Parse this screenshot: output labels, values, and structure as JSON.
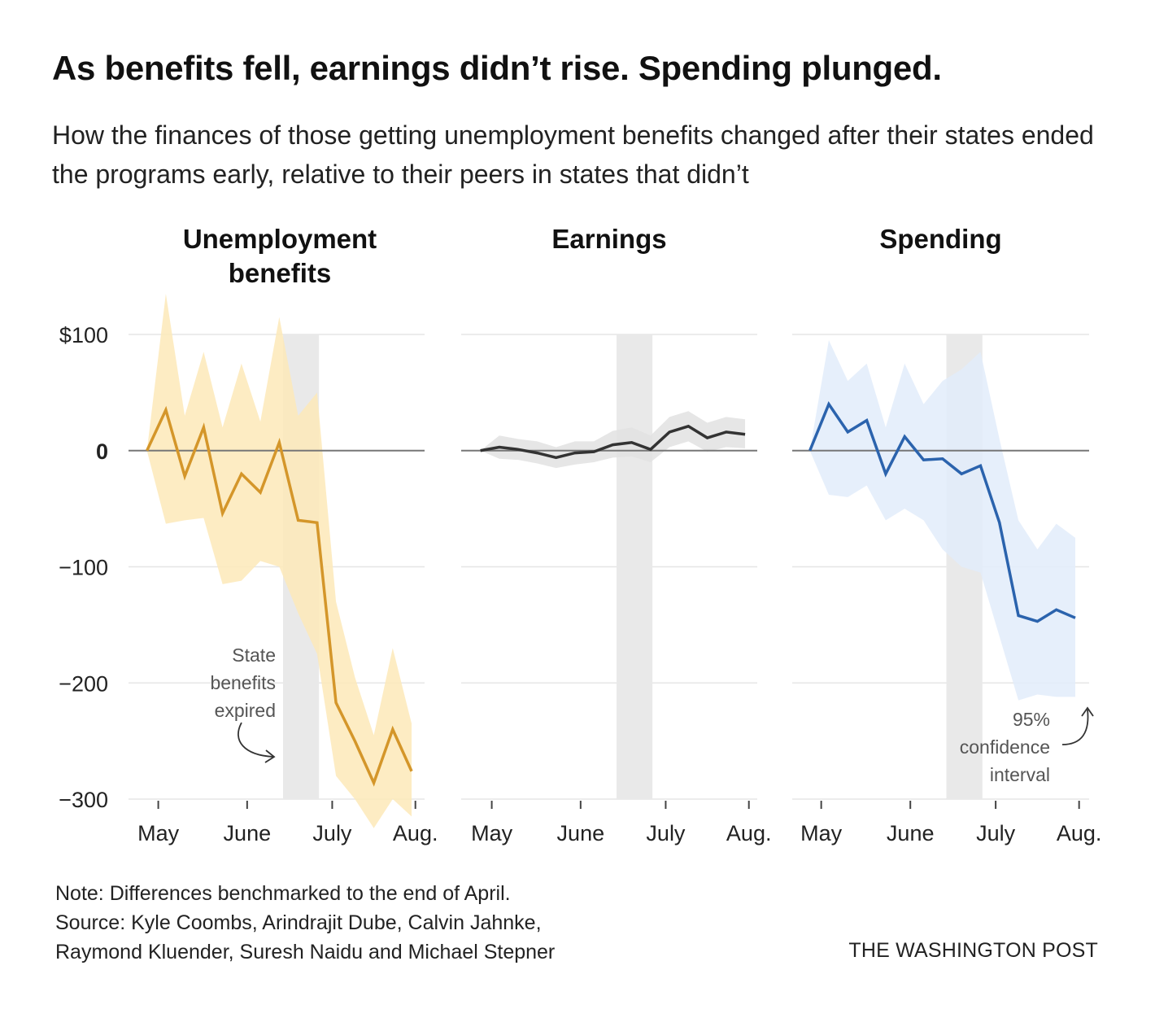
{
  "title": "As benefits fell, earnings didn’t rise. Spending plunged.",
  "subtitle": "How the finances of those getting unemployment benefits changed after their states ended the programs early, relative to their peers in states that didn’t",
  "note_lines": [
    "Note: Differences benchmarked to the end of April.",
    "Source: Kyle Coombs, Arindrajit Dube, Calvin Jahnke,",
    "Raymond Kluender, Suresh Naidu and Michael Stepner"
  ],
  "credit": "THE WASHINGTON POST",
  "chart_data": {
    "type": "line",
    "ylim": [
      -300,
      100
    ],
    "y_ticks": [
      {
        "value": 100,
        "label": "$100"
      },
      {
        "value": 0,
        "label": "0"
      },
      {
        "value": -100,
        "label": "−100"
      },
      {
        "value": -200,
        "label": "−200"
      },
      {
        "value": -300,
        "label": "−300"
      }
    ],
    "x_ticks": [
      {
        "pos": 0.6,
        "label": "May"
      },
      {
        "pos": 5.3,
        "label": "June"
      },
      {
        "pos": 9.8,
        "label": "July"
      },
      {
        "pos": 14.2,
        "label": "Aug."
      }
    ],
    "xlim": [
      -0.2,
      14.6
    ],
    "expired_band": [
      7.2,
      9.1
    ],
    "panels": [
      {
        "title": [
          "Unemployment",
          "benefits"
        ],
        "color": "#d4962a",
        "band_color": "#fde9b8",
        "x": [
          0,
          1,
          2,
          3,
          4,
          5,
          6,
          7,
          8,
          9,
          10,
          11,
          12,
          13,
          14
        ],
        "values": [
          0,
          35,
          -22,
          20,
          -54,
          -20,
          -36,
          7,
          -60,
          -62,
          -217,
          -250,
          -286,
          -240,
          -276
        ],
        "lower": [
          0,
          -63,
          -60,
          -58,
          -115,
          -112,
          -95,
          -100,
          -140,
          -175,
          -280,
          -300,
          -325,
          -300,
          -315
        ],
        "upper": [
          0,
          135,
          30,
          85,
          20,
          75,
          25,
          115,
          30,
          50,
          -130,
          -195,
          -245,
          -170,
          -235
        ]
      },
      {
        "title": [
          "Earnings"
        ],
        "color": "#333333",
        "band_color": "#e2e2e2",
        "x": [
          0,
          1,
          2,
          3,
          4,
          5,
          6,
          7,
          8,
          9,
          10,
          11,
          12,
          13,
          14
        ],
        "values": [
          0,
          3,
          1,
          -2,
          -6,
          -2,
          -1,
          5,
          7,
          1,
          16,
          21,
          11,
          16,
          14
        ],
        "lower": [
          0,
          -7,
          -8,
          -11,
          -15,
          -12,
          -10,
          -6,
          -5,
          -10,
          3,
          8,
          -1,
          3,
          2
        ],
        "upper": [
          0,
          13,
          10,
          8,
          3,
          8,
          8,
          17,
          20,
          13,
          29,
          34,
          24,
          29,
          27
        ]
      },
      {
        "title": [
          "Spending"
        ],
        "color": "#2b63ad",
        "band_color": "#e2ecfa",
        "x": [
          0,
          1,
          2,
          3,
          4,
          5,
          6,
          7,
          8,
          9,
          10,
          11,
          12,
          13,
          14
        ],
        "values": [
          0,
          40,
          16,
          26,
          -20,
          12,
          -8,
          -7,
          -20,
          -13,
          -62,
          -142,
          -147,
          -137,
          -144
        ],
        "lower": [
          0,
          -38,
          -40,
          -30,
          -60,
          -50,
          -60,
          -85,
          -100,
          -105,
          -160,
          -215,
          -210,
          -212,
          -212
        ],
        "upper": [
          0,
          95,
          60,
          75,
          20,
          75,
          40,
          60,
          70,
          85,
          10,
          -60,
          -85,
          -63,
          -75
        ]
      }
    ],
    "annotations": [
      {
        "panel": 0,
        "lines": [
          "State",
          "benefits",
          "expired"
        ]
      },
      {
        "panel": 2,
        "lines": [
          "95%",
          "confidence",
          "interval"
        ]
      }
    ]
  }
}
